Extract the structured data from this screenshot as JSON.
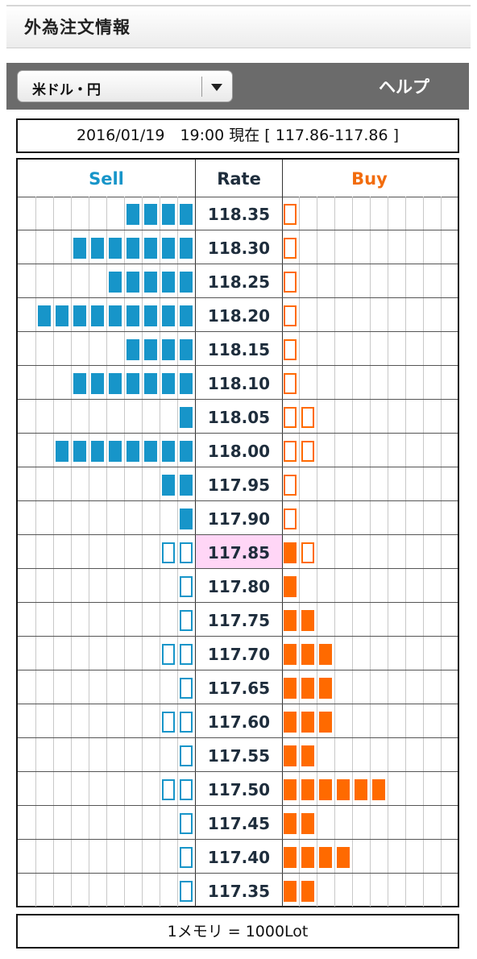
{
  "header": {
    "title": "外為注文情報"
  },
  "selector": {
    "value": "米ドル・円",
    "help_label": "ヘルプ"
  },
  "status": {
    "datetime": "2016/01/19　19:00 現在 [ 117.86-117.86 ]"
  },
  "book": {
    "headers": {
      "sell": "Sell",
      "rate": "Rate",
      "buy": "Buy"
    },
    "current_rate": "117.85",
    "rows": [
      {
        "rate": "118.35",
        "sell_filled": 4,
        "sell_outline": 0,
        "buy_filled": 0,
        "buy_outline": 1
      },
      {
        "rate": "118.30",
        "sell_filled": 7,
        "sell_outline": 0,
        "buy_filled": 0,
        "buy_outline": 1
      },
      {
        "rate": "118.25",
        "sell_filled": 5,
        "sell_outline": 0,
        "buy_filled": 0,
        "buy_outline": 1
      },
      {
        "rate": "118.20",
        "sell_filled": 9,
        "sell_outline": 0,
        "buy_filled": 0,
        "buy_outline": 1
      },
      {
        "rate": "118.15",
        "sell_filled": 4,
        "sell_outline": 0,
        "buy_filled": 0,
        "buy_outline": 1
      },
      {
        "rate": "118.10",
        "sell_filled": 7,
        "sell_outline": 0,
        "buy_filled": 0,
        "buy_outline": 1
      },
      {
        "rate": "118.05",
        "sell_filled": 1,
        "sell_outline": 0,
        "buy_filled": 0,
        "buy_outline": 2
      },
      {
        "rate": "118.00",
        "sell_filled": 8,
        "sell_outline": 0,
        "buy_filled": 0,
        "buy_outline": 2
      },
      {
        "rate": "117.95",
        "sell_filled": 2,
        "sell_outline": 0,
        "buy_filled": 0,
        "buy_outline": 1
      },
      {
        "rate": "117.90",
        "sell_filled": 1,
        "sell_outline": 0,
        "buy_filled": 0,
        "buy_outline": 1
      },
      {
        "rate": "117.85",
        "sell_filled": 0,
        "sell_outline": 2,
        "buy_filled": 1,
        "buy_outline": 1
      },
      {
        "rate": "117.80",
        "sell_filled": 0,
        "sell_outline": 1,
        "buy_filled": 1,
        "buy_outline": 0
      },
      {
        "rate": "117.75",
        "sell_filled": 0,
        "sell_outline": 1,
        "buy_filled": 2,
        "buy_outline": 0
      },
      {
        "rate": "117.70",
        "sell_filled": 0,
        "sell_outline": 2,
        "buy_filled": 3,
        "buy_outline": 0
      },
      {
        "rate": "117.65",
        "sell_filled": 0,
        "sell_outline": 1,
        "buy_filled": 3,
        "buy_outline": 0
      },
      {
        "rate": "117.60",
        "sell_filled": 0,
        "sell_outline": 2,
        "buy_filled": 3,
        "buy_outline": 0
      },
      {
        "rate": "117.55",
        "sell_filled": 0,
        "sell_outline": 1,
        "buy_filled": 2,
        "buy_outline": 0
      },
      {
        "rate": "117.50",
        "sell_filled": 0,
        "sell_outline": 2,
        "buy_filled": 6,
        "buy_outline": 0
      },
      {
        "rate": "117.45",
        "sell_filled": 0,
        "sell_outline": 1,
        "buy_filled": 2,
        "buy_outline": 0
      },
      {
        "rate": "117.40",
        "sell_filled": 0,
        "sell_outline": 1,
        "buy_filled": 4,
        "buy_outline": 0
      },
      {
        "rate": "117.35",
        "sell_filled": 0,
        "sell_outline": 1,
        "buy_filled": 2,
        "buy_outline": 0
      }
    ]
  },
  "footer": {
    "note": "1メモリ = 1000Lot"
  },
  "colors": {
    "sell": "#1795c9",
    "buy": "#ff6a00",
    "current_row": "#ffd6f6",
    "bar": "#6b6b6b"
  }
}
